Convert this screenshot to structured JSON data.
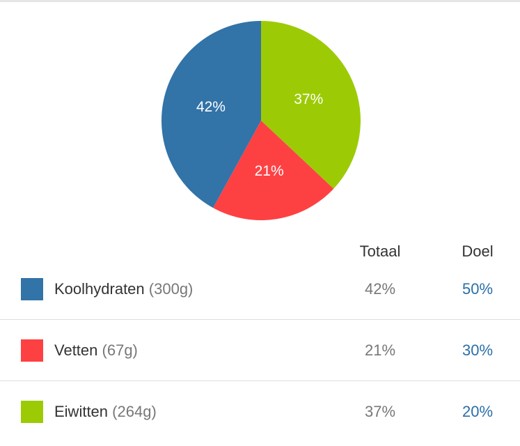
{
  "chart_data": {
    "type": "pie",
    "slices": [
      {
        "label": "Koolhydraten",
        "value": 42,
        "display": "42%",
        "color": "#3273a8"
      },
      {
        "label": "Vetten",
        "value": 21,
        "display": "21%",
        "color": "#fd4143"
      },
      {
        "label": "Eiwitten",
        "value": 37,
        "display": "37%",
        "color": "#9ccb05"
      }
    ]
  },
  "table": {
    "headers": {
      "totaal": "Totaal",
      "doel": "Doel"
    },
    "rows": [
      {
        "name": "Koolhydraten",
        "grams": "(300g)",
        "totaal": "42%",
        "doel": "50%",
        "color": "#3273a8"
      },
      {
        "name": "Vetten",
        "grams": "(67g)",
        "totaal": "21%",
        "doel": "30%",
        "color": "#fd4143"
      },
      {
        "name": "Eiwitten",
        "grams": "(264g)",
        "totaal": "37%",
        "doel": "20%",
        "color": "#9ccb05"
      }
    ]
  }
}
